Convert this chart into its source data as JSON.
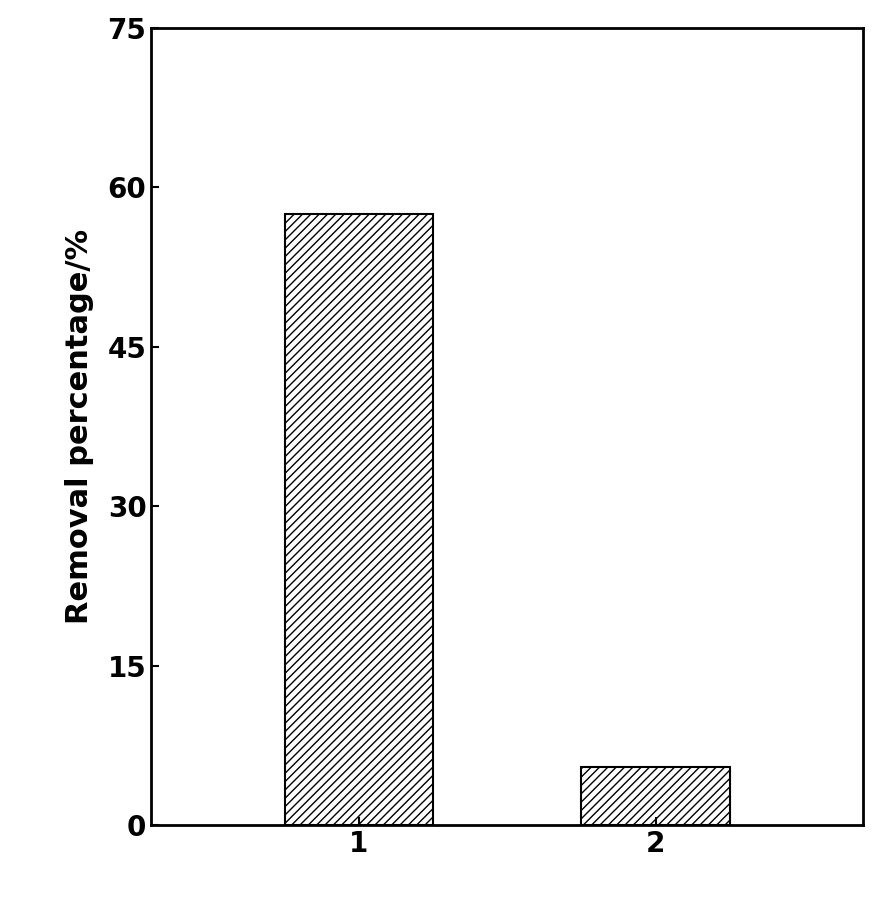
{
  "categories": [
    "1",
    "2"
  ],
  "values": [
    57.5,
    5.5
  ],
  "ylabel": "Removal percentage/%",
  "ylim": [
    0,
    75
  ],
  "yticks": [
    0,
    15,
    30,
    45,
    60,
    75
  ],
  "bar_width": 0.5,
  "bar_facecolor": "#ffffff",
  "bar_edgecolor": "#000000",
  "hatch_pattern": "////",
  "background_color": "#ffffff",
  "ylabel_fontsize": 22,
  "tick_fontsize": 20,
  "spine_linewidth": 2.0,
  "bar_linewidth": 1.5,
  "xlim": [
    0.3,
    2.7
  ]
}
